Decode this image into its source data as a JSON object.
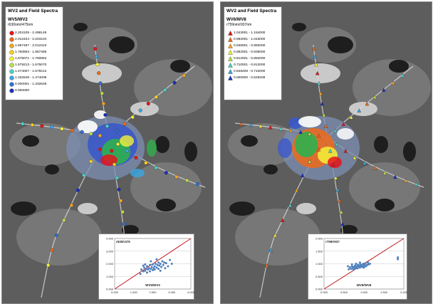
{
  "panels": [
    {
      "title": "WV2 and Field Spectra",
      "subtitle": "WV5/WV2",
      "band_label": "r630nm/r475nm",
      "marker_shape": "circle",
      "legend": [
        {
          "label": "2.204105 - 2.498149",
          "color": "#e8141b"
        },
        {
          "label": "2.012424 - 2.204104",
          "color": "#f06a1a"
        },
        {
          "label": "1.867487 - 2.012423",
          "color": "#f5a623"
        },
        {
          "label": "1.760853 - 1.867486",
          "color": "#f7d21e"
        },
        {
          "label": "1.675071 - 1.760852",
          "color": "#f5f23a"
        },
        {
          "label": "1.579213 - 1.675070",
          "color": "#b8e04a"
        },
        {
          "label": "1.474007 - 1.579212",
          "color": "#4fd1c5"
        },
        {
          "label": "1.332649 - 1.474006",
          "color": "#39a7e3"
        },
        {
          "label": "0.000001 - 1.332648",
          "color": "#2d6fd6"
        },
        {
          "label": "0.000000",
          "color": "#1b2fbf"
        }
      ],
      "chart_data": {
        "type": "scatter",
        "title": "r630/r475",
        "xlabel": "WV5/WV2",
        "xlim": [
          0,
          4
        ],
        "ylim": [
          0,
          4
        ],
        "xticks": [
          "0.000",
          "1.000",
          "2.000",
          "3.000",
          "4.000"
        ],
        "yticks": [
          "0.000",
          "1.000",
          "2.000",
          "3.000",
          "4.000"
        ],
        "reference_line": [
          [
            0,
            0
          ],
          [
            4,
            4
          ]
        ],
        "points": [
          [
            1.35,
            1.2
          ],
          [
            1.4,
            1.55
          ],
          [
            1.5,
            1.4
          ],
          [
            1.55,
            1.7
          ],
          [
            1.6,
            1.45
          ],
          [
            1.65,
            1.6
          ],
          [
            1.7,
            1.3
          ],
          [
            1.7,
            1.8
          ],
          [
            1.75,
            1.55
          ],
          [
            1.8,
            1.65
          ],
          [
            1.85,
            1.4
          ],
          [
            1.85,
            1.9
          ],
          [
            1.9,
            1.6
          ],
          [
            1.95,
            1.75
          ],
          [
            2.0,
            1.5
          ],
          [
            2.0,
            1.95
          ],
          [
            2.05,
            1.65
          ],
          [
            2.1,
            1.8
          ],
          [
            2.1,
            1.55
          ],
          [
            2.15,
            2.0
          ],
          [
            2.2,
            1.7
          ],
          [
            2.25,
            1.9
          ],
          [
            2.3,
            1.6
          ],
          [
            2.3,
            2.1
          ],
          [
            2.35,
            1.85
          ],
          [
            2.4,
            2.0
          ],
          [
            2.45,
            1.75
          ],
          [
            2.5,
            2.2
          ],
          [
            2.55,
            1.9
          ],
          [
            2.6,
            2.1
          ],
          [
            2.65,
            1.65
          ],
          [
            2.7,
            2.05
          ],
          [
            2.8,
            1.8
          ],
          [
            2.9,
            2.3
          ],
          [
            3.0,
            2.0
          ],
          [
            2.2,
            2.35
          ],
          [
            1.6,
            1.95
          ],
          [
            1.9,
            2.2
          ],
          [
            2.4,
            1.45
          ],
          [
            1.5,
            1.85
          ]
        ]
      }
    },
    {
      "title": "WV2 and Field Spectra",
      "subtitle": "WV6/WV8",
      "band_label": "r759nm/r937nm",
      "marker_shape": "triangle",
      "legend": [
        {
          "label": "1.043001 - 1.154000",
          "color": "#e8141b"
        },
        {
          "label": "0.992001 - 1.043000",
          "color": "#f06a1a"
        },
        {
          "label": "0.935001 - 0.992000",
          "color": "#f5a623"
        },
        {
          "label": "0.882001 - 0.935000",
          "color": "#f5f23a"
        },
        {
          "label": "0.812001 - 0.882000",
          "color": "#b8e04a"
        },
        {
          "label": "0.710001 - 0.812000",
          "color": "#4fd1c5"
        },
        {
          "label": "0.628209 - 0.710000",
          "color": "#39a7e3"
        },
        {
          "label": "0.000000 - 0.628208",
          "color": "#1b2fbf"
        }
      ],
      "chart_data": {
        "type": "scatter",
        "title": "r759/r937",
        "xlabel": "WV6/WV8",
        "xlim": [
          0,
          2
        ],
        "ylim": [
          0,
          2
        ],
        "xticks": [
          "0.000",
          "0.500",
          "1.000",
          "1.500",
          "2.000"
        ],
        "yticks": [
          "0.000",
          "0.500",
          "1.000",
          "1.500",
          "2.000"
        ],
        "reference_line": [
          [
            0,
            0
          ],
          [
            2,
            2
          ]
        ],
        "points": [
          [
            0.62,
            0.78
          ],
          [
            0.65,
            0.86
          ],
          [
            0.68,
            0.8
          ],
          [
            0.7,
            0.9
          ],
          [
            0.72,
            0.83
          ],
          [
            0.75,
            0.88
          ],
          [
            0.77,
            0.8
          ],
          [
            0.78,
            0.93
          ],
          [
            0.8,
            0.86
          ],
          [
            0.82,
            0.9
          ],
          [
            0.84,
            0.82
          ],
          [
            0.85,
            0.96
          ],
          [
            0.87,
            0.88
          ],
          [
            0.88,
            0.92
          ],
          [
            0.9,
            0.85
          ],
          [
            0.91,
            0.98
          ],
          [
            0.93,
            0.9
          ],
          [
            0.95,
            0.94
          ],
          [
            0.96,
            0.87
          ],
          [
            0.98,
            1.0
          ],
          [
            1.0,
            0.92
          ],
          [
            1.02,
            0.97
          ],
          [
            1.04,
            1.02
          ],
          [
            1.05,
            0.9
          ],
          [
            1.08,
            0.95
          ],
          [
            1.1,
            1.05
          ],
          [
            1.12,
            0.98
          ],
          [
            1.15,
            1.0
          ],
          [
            0.7,
            0.98
          ],
          [
            0.8,
            1.0
          ],
          [
            0.9,
            1.05
          ],
          [
            0.6,
            0.9
          ],
          [
            1.85,
            1.25
          ],
          [
            1.85,
            1.18
          ],
          [
            0.74,
            0.76
          ],
          [
            1.0,
            0.85
          ]
        ]
      }
    }
  ]
}
